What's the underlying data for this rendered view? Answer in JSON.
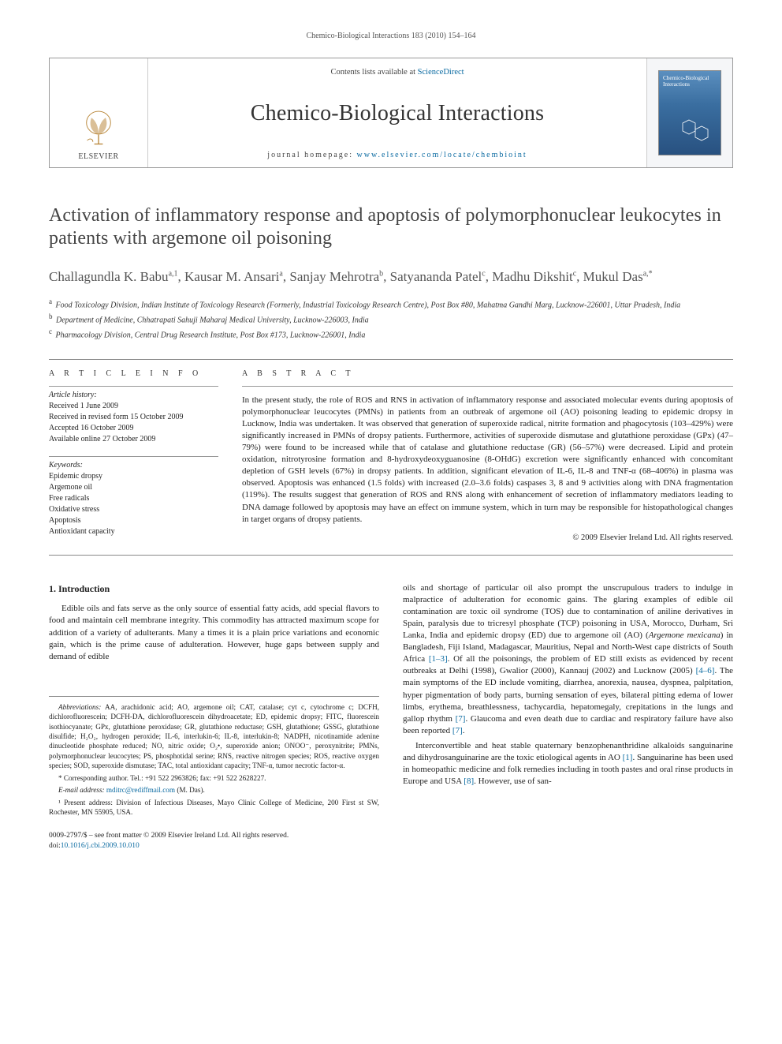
{
  "running_header": "Chemico-Biological Interactions 183 (2010) 154–164",
  "banner": {
    "publisher": "ELSEVIER",
    "contents_prefix": "Contents lists available at ",
    "contents_link": "ScienceDirect",
    "journal_name": "Chemico-Biological Interactions",
    "homepage_prefix": "journal homepage: ",
    "homepage_url": "www.elsevier.com/locate/chembioint",
    "cover_title": "Chemico-Biological Interactions"
  },
  "article": {
    "title": "Activation of inflammatory response and apoptosis of polymorphonuclear leukocytes in patients with argemone oil poisoning",
    "authors_html": "Challagundla K. Babu<sup>a,1</sup>, Kausar M. Ansari<sup>a</sup>, Sanjay Mehrotra<sup>b</sup>, Satyananda Patel<sup>c</sup>, Madhu Dikshit<sup>c</sup>, Mukul Das<sup>a,*</sup>",
    "affiliations": [
      {
        "sup": "a",
        "text": "Food Toxicology Division, Indian Institute of Toxicology Research (Formerly, Industrial Toxicology Research Centre), Post Box #80, Mahatma Gandhi Marg, Lucknow-226001, Uttar Pradesh, India"
      },
      {
        "sup": "b",
        "text": "Department of Medicine, Chhatrapati Sahuji Maharaj Medical University, Lucknow-226003, India"
      },
      {
        "sup": "c",
        "text": "Pharmacology Division, Central Drug Research Institute, Post Box #173, Lucknow-226001, India"
      }
    ]
  },
  "info": {
    "label": "A R T I C L E   I N F O",
    "history_head": "Article history:",
    "history": [
      "Received 1 June 2009",
      "Received in revised form 15 October 2009",
      "Accepted 16 October 2009",
      "Available online 27 October 2009"
    ],
    "keywords_head": "Keywords:",
    "keywords": [
      "Epidemic dropsy",
      "Argemone oil",
      "Free radicals",
      "Oxidative stress",
      "Apoptosis",
      "Antioxidant capacity"
    ]
  },
  "abstract": {
    "label": "A B S T R A C T",
    "text": "In the present study, the role of ROS and RNS in activation of inflammatory response and associated molecular events during apoptosis of polymorphonuclear leucocytes (PMNs) in patients from an outbreak of argemone oil (AO) poisoning leading to epidemic dropsy in Lucknow, India was undertaken. It was observed that generation of superoxide radical, nitrite formation and phagocytosis (103–429%) were significantly increased in PMNs of dropsy patients. Furthermore, activities of superoxide dismutase and glutathione peroxidase (GPx) (47–79%) were found to be increased while that of catalase and glutathione reductase (GR) (56–57%) were decreased. Lipid and protein oxidation, nitrotyrosine formation and 8-hydroxydeoxyguanosine (8-OHdG) excretion were significantly enhanced with concomitant depletion of GSH levels (67%) in dropsy patients. In addition, significant elevation of IL-6, IL-8 and TNF-α (68–406%) in plasma was observed. Apoptosis was enhanced (1.5 folds) with increased (2.0–3.6 folds) caspases 3, 8 and 9 activities along with DNA fragmentation (119%). The results suggest that generation of ROS and RNS along with enhancement of secretion of inflammatory mediators leading to DNA damage followed by apoptosis may have an effect on immune system, which in turn may be responsible for histopathological changes in target organs of dropsy patients.",
    "copyright": "© 2009 Elsevier Ireland Ltd. All rights reserved."
  },
  "intro": {
    "heading": "1. Introduction",
    "left_para": "Edible oils and fats serve as the only source of essential fatty acids, add special flavors to food and maintain cell membrane integrity. This commodity has attracted maximum scope for addition of a variety of adulterants. Many a times it is a plain price variations and economic gain, which is the prime cause of adulteration. However, huge gaps between supply and demand of edible",
    "right_p1_a": "oils and shortage of particular oil also prompt the unscrupulous traders to indulge in malpractice of adulteration for economic gains. The glaring examples of edible oil contamination are toxic oil syndrome (TOS) due to contamination of aniline derivatives in Spain, paralysis due to tricresyl phosphate (TCP) poisoning in USA, Morocco, Durham, Sri Lanka, India and epidemic dropsy (ED) due to argemone oil (AO) (",
    "right_p1_it": "Argemone mexicana",
    "right_p1_b": ") in Bangladesh, Fiji Island, Madagascar, Mauritius, Nepal and North-West cape districts of South Africa ",
    "right_ref1": "[1–3]",
    "right_p1_c": ". Of all the poisonings, the problem of ED still exists as evidenced by recent outbreaks at Delhi (1998), Gwalior (2000), Kannauj (2002) and Lucknow (2005) ",
    "right_ref2": "[4–6]",
    "right_p1_d": ". The main symptoms of the ED include vomiting, diarrhea, anorexia, nausea, dyspnea, palpitation, hyper pigmentation of body parts, burning sensation of eyes, bilateral pitting edema of lower limbs, erythema, breathlessness, tachycardia, hepatomegaly, crepitations in the lungs and gallop rhythm ",
    "right_ref3": "[7]",
    "right_p1_e": ". Glaucoma and even death due to cardiac and respiratory failure have also been reported ",
    "right_ref4": "[7]",
    "right_p1_f": ".",
    "right_p2_a": "Interconvertible and heat stable quaternary benzophenanthridine alkaloids sanguinarine and dihydrosanguinarine are the toxic etiological agents in AO ",
    "right_ref5": "[1]",
    "right_p2_b": ". Sanguinarine has been used in homeopathic medicine and folk remedies including in tooth pastes and oral rinse products in Europe and USA ",
    "right_ref6": "[8]",
    "right_p2_c": ". However, use of san-"
  },
  "footnotes": {
    "abbrev_label": "Abbreviations:",
    "abbrev_text": " AA, arachidonic acid; AO, argemone oil; CAT, catalase; cyt c, cytochrome c; DCFH, dichlorofluorescein; DCFH-DA, dichlorofluorescein dihydroacetate; ED, epidemic dropsy; FITC, fluorescein isothiocyanate; GPx, glutathione peroxidase; GR, glutathione reductase; GSH, glutathione; GSSG, glutathione disulfide; H₂O₂, hydrogen peroxide; IL-6, interlukin-6; IL-8, interlukin-8; NADPH, nicotinamide adenine dinucleotide phosphate reduced; NO, nitric oxide; O₂•, superoxide anion; ONOO⁻, peroxynitrite; PMNs, polymorphonuclear leucocytes; PS, phosphotidal serine; RNS, reactive nitrogen species; ROS, reactive oxygen species; SOD, superoxide dismutase; TAC, total antioxidant capacity; TNF-α, tumor necrotic factor-α.",
    "corr_label": "* Corresponding author. ",
    "corr_text": "Tel.: +91 522 2963826; fax: +91 522 2628227.",
    "email_label": "E-mail address: ",
    "email": "mditrc@rediffmail.com",
    "email_suffix": " (M. Das).",
    "present_label": "¹ Present address: ",
    "present_text": "Division of Infectious Diseases, Mayo Clinic College of Medicine, 200 First st SW, Rochester, MN 55905, USA."
  },
  "doi": {
    "line1": "0009-2797/$ – see front matter © 2009 Elsevier Ireland Ltd. All rights reserved.",
    "line2_prefix": "doi:",
    "line2_link": "10.1016/j.cbi.2009.10.010"
  },
  "colors": {
    "link": "#0a6aa1",
    "text": "#222",
    "muted": "#555",
    "rule": "#888"
  }
}
